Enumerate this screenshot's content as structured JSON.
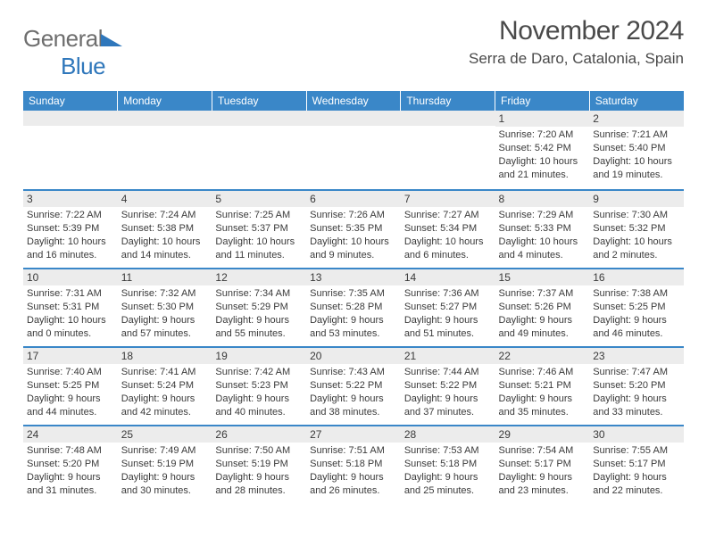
{
  "logo": {
    "word1": "General",
    "word2": "Blue"
  },
  "title": "November 2024",
  "location": "Serra de Daro, Catalonia, Spain",
  "day_headers": [
    "Sunday",
    "Monday",
    "Tuesday",
    "Wednesday",
    "Thursday",
    "Friday",
    "Saturday"
  ],
  "colors": {
    "header_bg": "#3a87c8",
    "header_text": "#ffffff",
    "border_top": "#3a87c8",
    "num_bg": "#ececec",
    "text": "#3a3a3a",
    "logo_gray": "#6e6e6e",
    "logo_blue": "#2f77bb"
  },
  "layout": {
    "table_font_size_header": 12,
    "cell_font_size_num": 12,
    "cell_font_size_info": 11,
    "title_font_size": 30,
    "location_font_size": 17
  },
  "weeks": [
    [
      {
        "n": "",
        "sr": "",
        "ss": "",
        "dl": ""
      },
      {
        "n": "",
        "sr": "",
        "ss": "",
        "dl": ""
      },
      {
        "n": "",
        "sr": "",
        "ss": "",
        "dl": ""
      },
      {
        "n": "",
        "sr": "",
        "ss": "",
        "dl": ""
      },
      {
        "n": "",
        "sr": "",
        "ss": "",
        "dl": ""
      },
      {
        "n": "1",
        "sr": "Sunrise: 7:20 AM",
        "ss": "Sunset: 5:42 PM",
        "dl": "Daylight: 10 hours and 21 minutes."
      },
      {
        "n": "2",
        "sr": "Sunrise: 7:21 AM",
        "ss": "Sunset: 5:40 PM",
        "dl": "Daylight: 10 hours and 19 minutes."
      }
    ],
    [
      {
        "n": "3",
        "sr": "Sunrise: 7:22 AM",
        "ss": "Sunset: 5:39 PM",
        "dl": "Daylight: 10 hours and 16 minutes."
      },
      {
        "n": "4",
        "sr": "Sunrise: 7:24 AM",
        "ss": "Sunset: 5:38 PM",
        "dl": "Daylight: 10 hours and 14 minutes."
      },
      {
        "n": "5",
        "sr": "Sunrise: 7:25 AM",
        "ss": "Sunset: 5:37 PM",
        "dl": "Daylight: 10 hours and 11 minutes."
      },
      {
        "n": "6",
        "sr": "Sunrise: 7:26 AM",
        "ss": "Sunset: 5:35 PM",
        "dl": "Daylight: 10 hours and 9 minutes."
      },
      {
        "n": "7",
        "sr": "Sunrise: 7:27 AM",
        "ss": "Sunset: 5:34 PM",
        "dl": "Daylight: 10 hours and 6 minutes."
      },
      {
        "n": "8",
        "sr": "Sunrise: 7:29 AM",
        "ss": "Sunset: 5:33 PM",
        "dl": "Daylight: 10 hours and 4 minutes."
      },
      {
        "n": "9",
        "sr": "Sunrise: 7:30 AM",
        "ss": "Sunset: 5:32 PM",
        "dl": "Daylight: 10 hours and 2 minutes."
      }
    ],
    [
      {
        "n": "10",
        "sr": "Sunrise: 7:31 AM",
        "ss": "Sunset: 5:31 PM",
        "dl": "Daylight: 10 hours and 0 minutes."
      },
      {
        "n": "11",
        "sr": "Sunrise: 7:32 AM",
        "ss": "Sunset: 5:30 PM",
        "dl": "Daylight: 9 hours and 57 minutes."
      },
      {
        "n": "12",
        "sr": "Sunrise: 7:34 AM",
        "ss": "Sunset: 5:29 PM",
        "dl": "Daylight: 9 hours and 55 minutes."
      },
      {
        "n": "13",
        "sr": "Sunrise: 7:35 AM",
        "ss": "Sunset: 5:28 PM",
        "dl": "Daylight: 9 hours and 53 minutes."
      },
      {
        "n": "14",
        "sr": "Sunrise: 7:36 AM",
        "ss": "Sunset: 5:27 PM",
        "dl": "Daylight: 9 hours and 51 minutes."
      },
      {
        "n": "15",
        "sr": "Sunrise: 7:37 AM",
        "ss": "Sunset: 5:26 PM",
        "dl": "Daylight: 9 hours and 49 minutes."
      },
      {
        "n": "16",
        "sr": "Sunrise: 7:38 AM",
        "ss": "Sunset: 5:25 PM",
        "dl": "Daylight: 9 hours and 46 minutes."
      }
    ],
    [
      {
        "n": "17",
        "sr": "Sunrise: 7:40 AM",
        "ss": "Sunset: 5:25 PM",
        "dl": "Daylight: 9 hours and 44 minutes."
      },
      {
        "n": "18",
        "sr": "Sunrise: 7:41 AM",
        "ss": "Sunset: 5:24 PM",
        "dl": "Daylight: 9 hours and 42 minutes."
      },
      {
        "n": "19",
        "sr": "Sunrise: 7:42 AM",
        "ss": "Sunset: 5:23 PM",
        "dl": "Daylight: 9 hours and 40 minutes."
      },
      {
        "n": "20",
        "sr": "Sunrise: 7:43 AM",
        "ss": "Sunset: 5:22 PM",
        "dl": "Daylight: 9 hours and 38 minutes."
      },
      {
        "n": "21",
        "sr": "Sunrise: 7:44 AM",
        "ss": "Sunset: 5:22 PM",
        "dl": "Daylight: 9 hours and 37 minutes."
      },
      {
        "n": "22",
        "sr": "Sunrise: 7:46 AM",
        "ss": "Sunset: 5:21 PM",
        "dl": "Daylight: 9 hours and 35 minutes."
      },
      {
        "n": "23",
        "sr": "Sunrise: 7:47 AM",
        "ss": "Sunset: 5:20 PM",
        "dl": "Daylight: 9 hours and 33 minutes."
      }
    ],
    [
      {
        "n": "24",
        "sr": "Sunrise: 7:48 AM",
        "ss": "Sunset: 5:20 PM",
        "dl": "Daylight: 9 hours and 31 minutes."
      },
      {
        "n": "25",
        "sr": "Sunrise: 7:49 AM",
        "ss": "Sunset: 5:19 PM",
        "dl": "Daylight: 9 hours and 30 minutes."
      },
      {
        "n": "26",
        "sr": "Sunrise: 7:50 AM",
        "ss": "Sunset: 5:19 PM",
        "dl": "Daylight: 9 hours and 28 minutes."
      },
      {
        "n": "27",
        "sr": "Sunrise: 7:51 AM",
        "ss": "Sunset: 5:18 PM",
        "dl": "Daylight: 9 hours and 26 minutes."
      },
      {
        "n": "28",
        "sr": "Sunrise: 7:53 AM",
        "ss": "Sunset: 5:18 PM",
        "dl": "Daylight: 9 hours and 25 minutes."
      },
      {
        "n": "29",
        "sr": "Sunrise: 7:54 AM",
        "ss": "Sunset: 5:17 PM",
        "dl": "Daylight: 9 hours and 23 minutes."
      },
      {
        "n": "30",
        "sr": "Sunrise: 7:55 AM",
        "ss": "Sunset: 5:17 PM",
        "dl": "Daylight: 9 hours and 22 minutes."
      }
    ]
  ]
}
